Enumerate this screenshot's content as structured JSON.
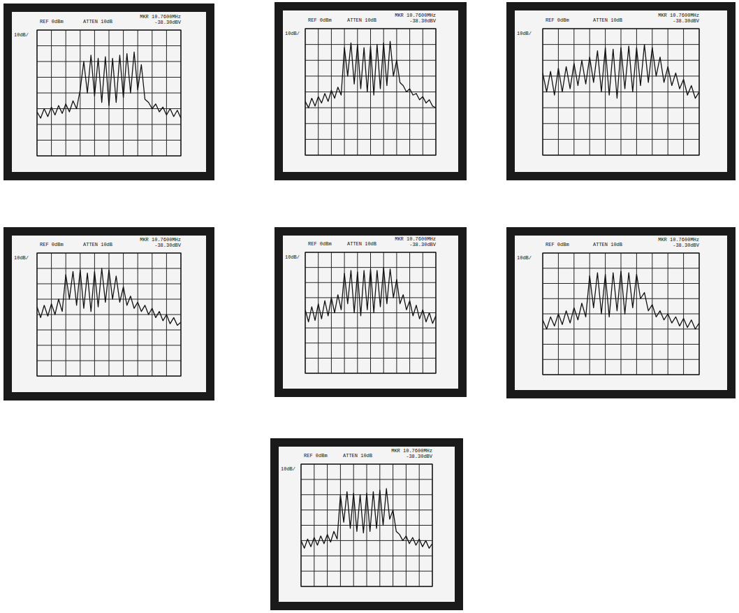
{
  "chart_data": [
    {
      "type": "line",
      "annotations": [
        "REF 0dBm",
        "ATTEN 10dB",
        "MKR 10.7600MHz",
        "-38.30dBV",
        "10dB/"
      ],
      "grid": true,
      "tick_labels": false,
      "xlim": [
        0,
        10
      ],
      "xticks": [
        0,
        1,
        2,
        3,
        4,
        5,
        6,
        7,
        8,
        9,
        10
      ],
      "ylim": [
        -80,
        0
      ],
      "yticks": [
        -80,
        -70,
        -60,
        -50,
        -40,
        -30,
        -20,
        -10,
        0
      ],
      "x": [
        0,
        0.25,
        0.5,
        0.75,
        1,
        1.25,
        1.5,
        1.75,
        2,
        2.25,
        2.5,
        2.75,
        3,
        3.25,
        3.5,
        3.75,
        4,
        4.25,
        4.5,
        4.75,
        5,
        5.25,
        5.5,
        5.75,
        6,
        6.25,
        6.5,
        6.75,
        7,
        7.25,
        7.5,
        7.75,
        8,
        8.25,
        8.5,
        8.75,
        9,
        9.25,
        9.5,
        9.75,
        10
      ],
      "series": [
        {
          "color": "#111111",
          "values": [
            -52,
            -56,
            -50,
            -55,
            -49,
            -54,
            -48,
            -53,
            -47,
            -52,
            -45,
            -50,
            -38,
            -20,
            -40,
            -16,
            -42,
            -18,
            -46,
            -17,
            -48,
            -18,
            -46,
            -16,
            -43,
            -15,
            -40,
            -14,
            -38,
            -22,
            -44,
            -46,
            -50,
            -47,
            -52,
            -49,
            -54,
            -50,
            -55,
            -51,
            -56
          ]
        }
      ]
    },
    {
      "type": "line",
      "annotations": [
        "REF 0dBm",
        "ATTEN 10dB",
        "MKR 10.7600MHz",
        "-38.30dBV",
        "10dB/"
      ],
      "grid": true,
      "tick_labels": false,
      "xlim": [
        0,
        10
      ],
      "xticks": [
        0,
        1,
        2,
        3,
        4,
        5,
        6,
        7,
        8,
        9,
        10
      ],
      "ylim": [
        -80,
        0
      ],
      "yticks": [
        -80,
        -70,
        -60,
        -50,
        -40,
        -30,
        -20,
        -10,
        0
      ],
      "x": [
        0,
        0.25,
        0.5,
        0.75,
        1,
        1.25,
        1.5,
        1.75,
        2,
        2.25,
        2.5,
        2.75,
        3,
        3.25,
        3.5,
        3.75,
        4,
        4.25,
        4.5,
        4.75,
        5,
        5.25,
        5.5,
        5.75,
        6,
        6.25,
        6.5,
        6.75,
        7,
        7.25,
        7.5,
        7.75,
        8,
        8.25,
        8.5,
        8.75,
        9,
        9.25,
        9.5,
        9.75,
        10
      ],
      "series": [
        {
          "color": "#111111",
          "values": [
            -46,
            -50,
            -44,
            -49,
            -43,
            -47,
            -41,
            -46,
            -39,
            -44,
            -37,
            -42,
            -12,
            -30,
            -9,
            -35,
            -10,
            -38,
            -12,
            -40,
            -11,
            -42,
            -10,
            -38,
            -9,
            -36,
            -8,
            -30,
            -20,
            -34,
            -36,
            -40,
            -38,
            -42,
            -41,
            -45,
            -43,
            -47,
            -45,
            -49,
            -50
          ]
        }
      ]
    },
    {
      "type": "line",
      "annotations": [
        "REF 0dBm",
        "ATTEN 10dB",
        "MKR 10.7600MHz",
        "-38.30dBV",
        "10dB/"
      ],
      "grid": true,
      "tick_labels": false,
      "xlim": [
        0,
        10
      ],
      "xticks": [
        0,
        1,
        2,
        3,
        4,
        5,
        6,
        7,
        8,
        9,
        10
      ],
      "ylim": [
        -80,
        0
      ],
      "yticks": [
        -80,
        -70,
        -60,
        -50,
        -40,
        -30,
        -20,
        -10,
        0
      ],
      "x": [
        0,
        0.25,
        0.5,
        0.75,
        1,
        1.25,
        1.5,
        1.75,
        2,
        2.25,
        2.5,
        2.75,
        3,
        3.25,
        3.5,
        3.75,
        4,
        4.25,
        4.5,
        4.75,
        5,
        5.25,
        5.5,
        5.75,
        6,
        6.25,
        6.5,
        6.75,
        7,
        7.25,
        7.5,
        7.75,
        8,
        8.25,
        8.5,
        8.75,
        9,
        9.25,
        9.5,
        9.75,
        10
      ],
      "series": [
        {
          "color": "#111111",
          "values": [
            -28,
            -40,
            -27,
            -42,
            -25,
            -40,
            -24,
            -38,
            -22,
            -36,
            -20,
            -35,
            -18,
            -34,
            -14,
            -40,
            -12,
            -42,
            -13,
            -44,
            -12,
            -38,
            -11,
            -40,
            -12,
            -36,
            -10,
            -34,
            -12,
            -30,
            -18,
            -34,
            -24,
            -36,
            -28,
            -38,
            -32,
            -42,
            -36,
            -44,
            -40
          ]
        }
      ]
    },
    {
      "type": "line",
      "annotations": [
        "REF 0dBm",
        "ATTEN 10dB",
        "MKR 10.7600MHz",
        "-38.30dBV",
        "10dB/"
      ],
      "grid": true,
      "tick_labels": false,
      "xlim": [
        0,
        10
      ],
      "xticks": [
        0,
        1,
        2,
        3,
        4,
        5,
        6,
        7,
        8,
        9,
        10
      ],
      "ylim": [
        -80,
        0
      ],
      "yticks": [
        -80,
        -70,
        -60,
        -50,
        -40,
        -30,
        -20,
        -10,
        0
      ],
      "x": [
        0,
        0.25,
        0.5,
        0.75,
        1,
        1.25,
        1.5,
        1.75,
        2,
        2.25,
        2.5,
        2.75,
        3,
        3.25,
        3.5,
        3.75,
        4,
        4.25,
        4.5,
        4.75,
        5,
        5.25,
        5.5,
        5.75,
        6,
        6.25,
        6.5,
        6.75,
        7,
        7.25,
        7.5,
        7.75,
        8,
        8.25,
        8.5,
        8.75,
        9,
        9.25,
        9.5,
        9.75,
        10
      ],
      "series": [
        {
          "color": "#111111",
          "values": [
            -35,
            -42,
            -34,
            -41,
            -33,
            -40,
            -30,
            -38,
            -14,
            -30,
            -12,
            -34,
            -11,
            -36,
            -13,
            -38,
            -12,
            -35,
            -10,
            -32,
            -11,
            -30,
            -15,
            -32,
            -22,
            -34,
            -28,
            -36,
            -32,
            -38,
            -34,
            -40,
            -36,
            -42,
            -38,
            -44,
            -40,
            -46,
            -42,
            -47,
            -45
          ]
        }
      ]
    },
    {
      "type": "line",
      "annotations": [
        "REF 0dBm",
        "ATTEN 10dB",
        "MKR 10.7600MHz",
        "-38.30dBV",
        "10dB/"
      ],
      "grid": true,
      "tick_labels": false,
      "xlim": [
        0,
        10
      ],
      "xticks": [
        0,
        1,
        2,
        3,
        4,
        5,
        6,
        7,
        8,
        9,
        10
      ],
      "ylim": [
        -80,
        0
      ],
      "yticks": [
        -80,
        -70,
        -60,
        -50,
        -40,
        -30,
        -20,
        -10,
        0
      ],
      "x": [
        0,
        0.25,
        0.5,
        0.75,
        1,
        1.25,
        1.5,
        1.75,
        2,
        2.25,
        2.5,
        2.75,
        3,
        3.25,
        3.5,
        3.75,
        4,
        4.25,
        4.5,
        4.75,
        5,
        5.25,
        5.5,
        5.75,
        6,
        6.25,
        6.5,
        6.75,
        7,
        7.25,
        7.5,
        7.75,
        8,
        8.25,
        8.5,
        8.75,
        9,
        9.25,
        9.5,
        9.75,
        10
      ],
      "series": [
        {
          "color": "#111111",
          "values": [
            -38,
            -46,
            -36,
            -45,
            -34,
            -44,
            -32,
            -42,
            -30,
            -40,
            -28,
            -38,
            -14,
            -34,
            -12,
            -40,
            -13,
            -42,
            -12,
            -38,
            -11,
            -40,
            -12,
            -36,
            -10,
            -34,
            -11,
            -30,
            -18,
            -34,
            -28,
            -38,
            -32,
            -42,
            -35,
            -44,
            -38,
            -46,
            -40,
            -47,
            -42
          ]
        }
      ]
    },
    {
      "type": "line",
      "annotations": [
        "REF 0dBm",
        "ATTEN 10dB",
        "MKR 10.7600MHz",
        "-38.30dBV",
        "10dB/"
      ],
      "grid": true,
      "tick_labels": false,
      "xlim": [
        0,
        10
      ],
      "xticks": [
        0,
        1,
        2,
        3,
        4,
        5,
        6,
        7,
        8,
        9,
        10
      ],
      "ylim": [
        -80,
        0
      ],
      "yticks": [
        -80,
        -70,
        -60,
        -50,
        -40,
        -30,
        -20,
        -10,
        0
      ],
      "x": [
        0,
        0.25,
        0.5,
        0.75,
        1,
        1.25,
        1.5,
        1.75,
        2,
        2.25,
        2.5,
        2.75,
        3,
        3.25,
        3.5,
        3.75,
        4,
        4.25,
        4.5,
        4.75,
        5,
        5.25,
        5.5,
        5.75,
        6,
        6.25,
        6.5,
        6.75,
        7,
        7.25,
        7.5,
        7.75,
        8,
        8.25,
        8.5,
        8.75,
        9,
        9.25,
        9.5,
        9.75,
        10
      ],
      "series": [
        {
          "color": "#111111",
          "values": [
            -44,
            -50,
            -42,
            -48,
            -40,
            -47,
            -38,
            -46,
            -36,
            -44,
            -33,
            -42,
            -15,
            -36,
            -13,
            -40,
            -14,
            -42,
            -13,
            -38,
            -12,
            -40,
            -13,
            -36,
            -14,
            -30,
            -26,
            -38,
            -34,
            -42,
            -38,
            -44,
            -40,
            -46,
            -42,
            -48,
            -43,
            -49,
            -44,
            -50,
            -46
          ]
        }
      ]
    },
    {
      "type": "line",
      "annotations": [
        "REF 0dBm",
        "ATTEN 10dB",
        "MKR 10.7600MHz",
        "-38.30dBV",
        "10dB/"
      ],
      "grid": true,
      "tick_labels": false,
      "xlim": [
        0,
        10
      ],
      "xticks": [
        0,
        1,
        2,
        3,
        4,
        5,
        6,
        7,
        8,
        9,
        10
      ],
      "ylim": [
        -80,
        0
      ],
      "yticks": [
        -80,
        -70,
        -60,
        -50,
        -40,
        -30,
        -20,
        -10,
        0
      ],
      "x": [
        0,
        0.25,
        0.5,
        0.75,
        1,
        1.25,
        1.5,
        1.75,
        2,
        2.25,
        2.5,
        2.75,
        3,
        3.25,
        3.5,
        3.75,
        4,
        4.25,
        4.5,
        4.75,
        5,
        5.25,
        5.5,
        5.75,
        6,
        6.25,
        6.5,
        6.75,
        7,
        7.25,
        7.5,
        7.75,
        8,
        8.25,
        8.5,
        8.75,
        9,
        9.25,
        9.5,
        9.75,
        10
      ],
      "series": [
        {
          "color": "#111111",
          "values": [
            -50,
            -55,
            -49,
            -54,
            -48,
            -53,
            -47,
            -52,
            -46,
            -51,
            -44,
            -49,
            -20,
            -38,
            -18,
            -42,
            -19,
            -44,
            -20,
            -45,
            -19,
            -44,
            -18,
            -42,
            -17,
            -40,
            -16,
            -36,
            -30,
            -44,
            -46,
            -50,
            -47,
            -52,
            -48,
            -53,
            -49,
            -54,
            -50,
            -55,
            -52
          ]
        }
      ]
    }
  ]
}
